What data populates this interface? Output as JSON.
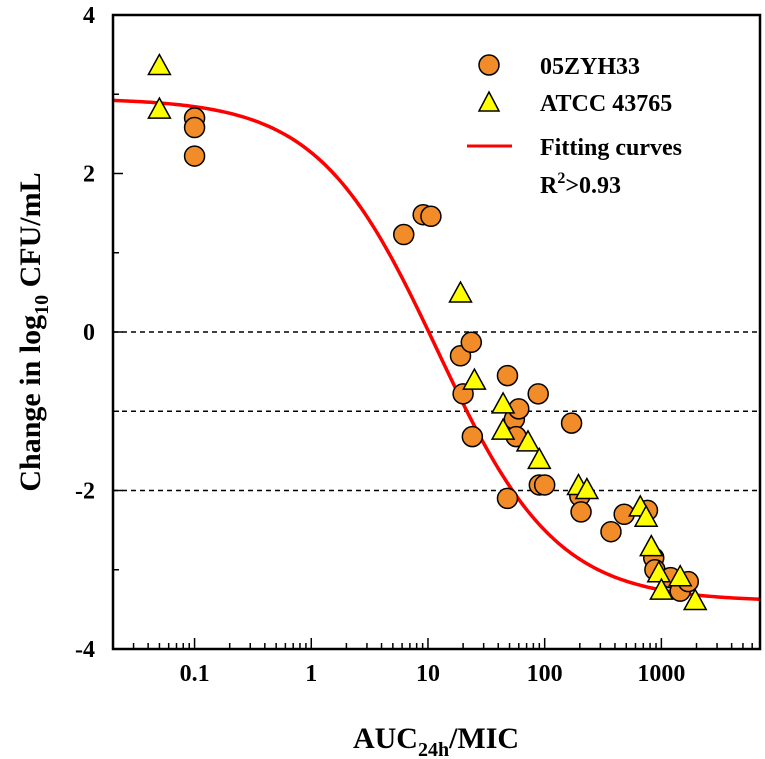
{
  "chart_data": {
    "type": "scatter",
    "title": "",
    "xscale": "log",
    "xlim": [
      0.02,
      7000
    ],
    "ylim": [
      -4,
      4
    ],
    "xlabel": {
      "main": "AUC",
      "sub": "24h",
      "rest": "/MIC"
    },
    "ylabel": {
      "main": "Change in log",
      "sub": "10",
      "rest": " CFU/mL"
    },
    "x_ticks": [
      {
        "value": 0.1,
        "label": "0.1"
      },
      {
        "value": 1,
        "label": "1"
      },
      {
        "value": 10,
        "label": "10"
      },
      {
        "value": 100,
        "label": "100"
      },
      {
        "value": 1000,
        "label": "1000"
      }
    ],
    "y_ticks": [
      {
        "value": 4,
        "label": "4"
      },
      {
        "value": 2,
        "label": "2"
      },
      {
        "value": 0,
        "label": "0"
      },
      {
        "value": -2,
        "label": "-2"
      },
      {
        "value": -4,
        "label": "-4"
      }
    ],
    "reference_lines": [
      0,
      -1,
      -2
    ],
    "series": [
      {
        "name": "05ZYH33",
        "marker": "circle",
        "color": "#F28C28",
        "points": [
          [
            0.1,
            2.7
          ],
          [
            0.1,
            2.58
          ],
          [
            0.1,
            2.22
          ],
          [
            6.2,
            1.23
          ],
          [
            9.1,
            1.48
          ],
          [
            10.6,
            1.46
          ],
          [
            19.0,
            -0.3
          ],
          [
            20.0,
            -0.78
          ],
          [
            23.5,
            -0.13
          ],
          [
            24.0,
            -1.32
          ],
          [
            48.0,
            -0.55
          ],
          [
            48.0,
            -2.1
          ],
          [
            55.0,
            -1.1
          ],
          [
            57.0,
            -1.32
          ],
          [
            60.0,
            -0.97
          ],
          [
            88.0,
            -0.78
          ],
          [
            90.0,
            -1.93
          ],
          [
            100.0,
            -1.93
          ],
          [
            170.0,
            -1.15
          ],
          [
            200.0,
            -2.07
          ],
          [
            205.0,
            -2.27
          ],
          [
            370.0,
            -2.52
          ],
          [
            480.0,
            -2.3
          ],
          [
            760.0,
            -2.25
          ],
          [
            860.0,
            -2.85
          ],
          [
            880.0,
            -3.0
          ],
          [
            1200.0,
            -3.1
          ],
          [
            1450.0,
            -3.27
          ],
          [
            1700.0,
            -3.15
          ]
        ]
      },
      {
        "name": "ATCC 43765",
        "marker": "triangle",
        "color": "#FFFF00",
        "points": [
          [
            0.05,
            3.35
          ],
          [
            0.05,
            2.8
          ],
          [
            19.0,
            0.48
          ],
          [
            25.0,
            -0.62
          ],
          [
            44.0,
            -0.92
          ],
          [
            44.0,
            -1.25
          ],
          [
            72.0,
            -1.4
          ],
          [
            90.0,
            -1.62
          ],
          [
            195.0,
            -1.95
          ],
          [
            230.0,
            -2.0
          ],
          [
            660.0,
            -2.22
          ],
          [
            740.0,
            -2.35
          ],
          [
            820.0,
            -2.72
          ],
          [
            950.0,
            -3.05
          ],
          [
            1000.0,
            -3.27
          ],
          [
            1450.0,
            -3.1
          ],
          [
            1950.0,
            -3.4
          ]
        ]
      },
      {
        "name": "Fitting curves",
        "marker": "line",
        "color": "#FF0000",
        "model": {
          "form": "sigmoid Emax",
          "E0": 2.95,
          "Emax": 6.35,
          "EC50": 12,
          "hill": 0.85
        }
      }
    ],
    "legend": {
      "position": "top-right",
      "r_squared": {
        "main": "R",
        "sup": "2",
        "rest": ">0.93"
      }
    }
  }
}
